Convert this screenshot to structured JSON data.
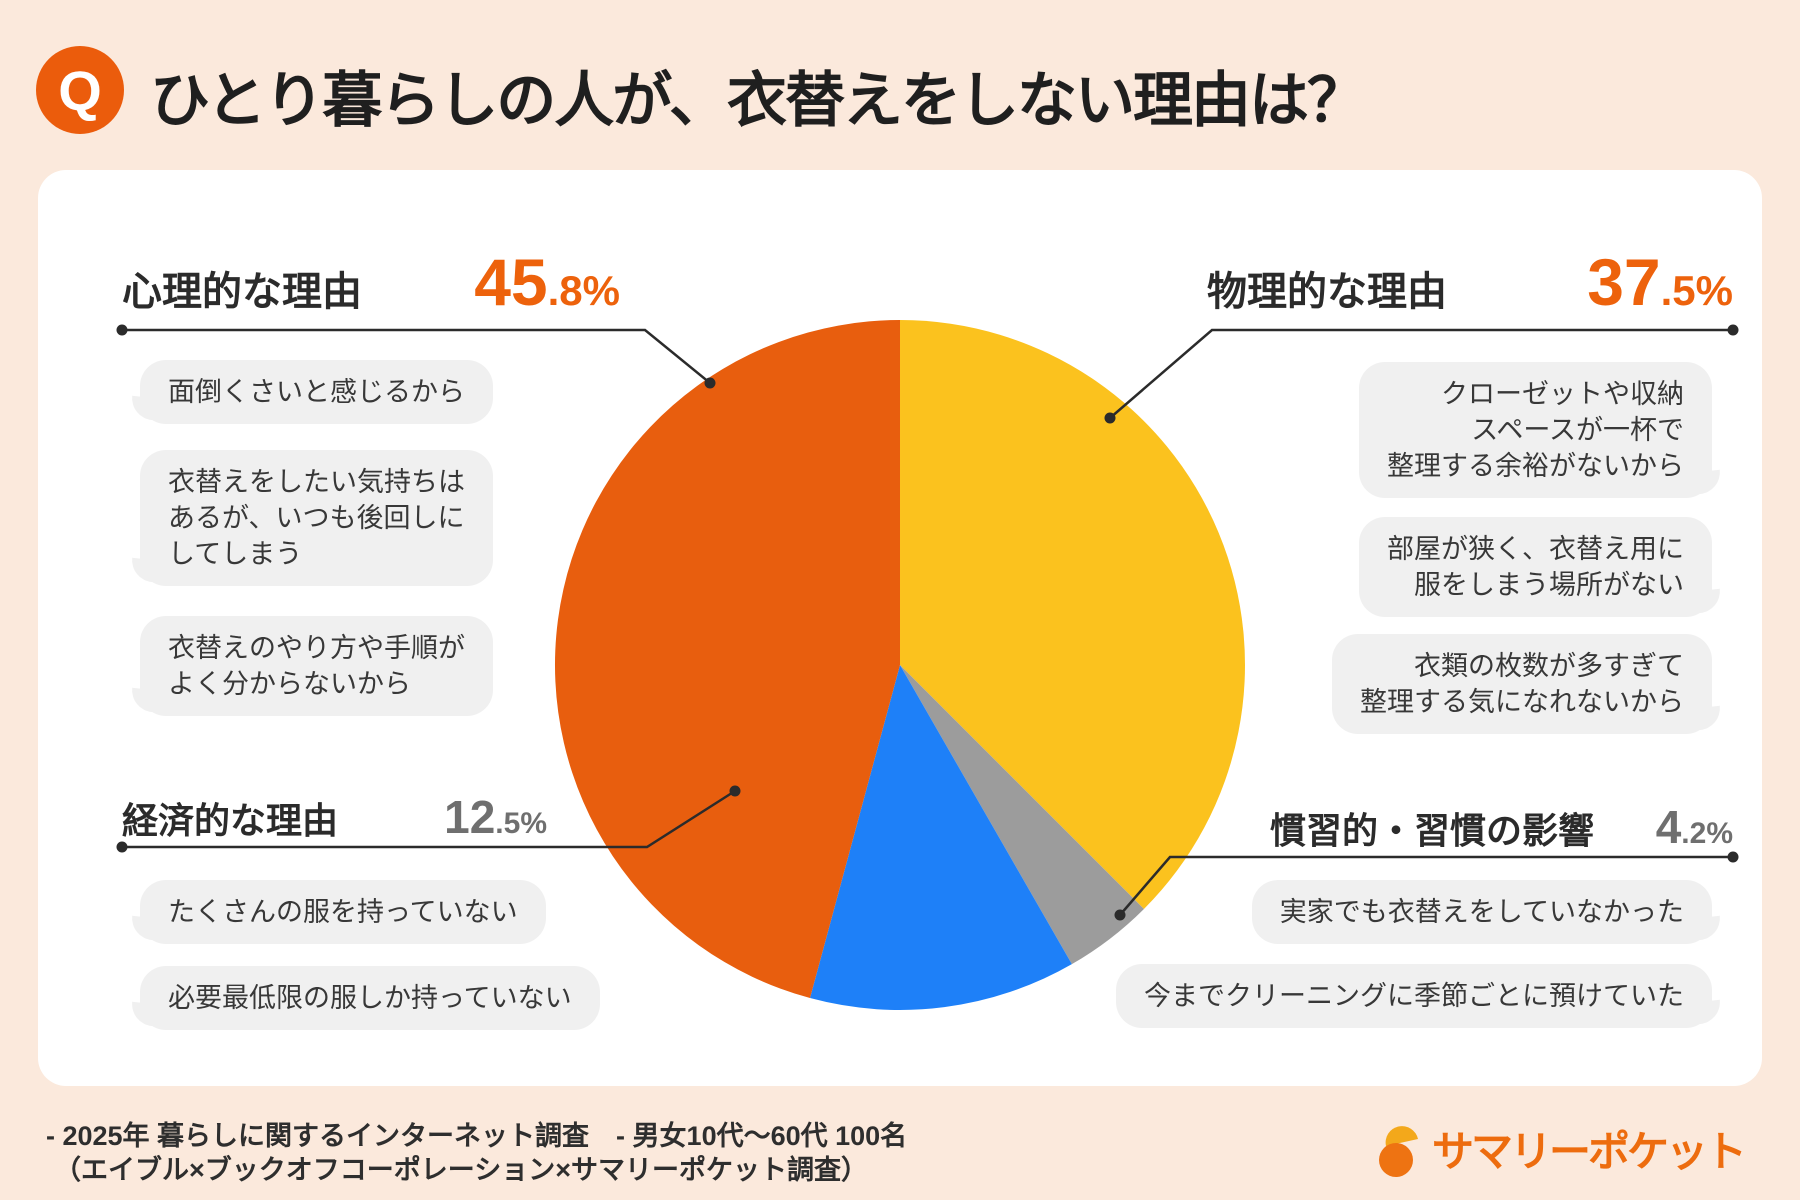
{
  "header": {
    "q_badge": "Q",
    "title": "ひとり暮らしの人が、衣替えをしない理由は？"
  },
  "chart_data": {
    "type": "pie",
    "title": "ひとり暮らしの人が、衣替えをしない理由は？",
    "start_angle_deg": 0,
    "direction": "clockwise",
    "slices": [
      {
        "key": "physical",
        "label": "物理的な理由",
        "value": 37.5,
        "color": "#FBC21E"
      },
      {
        "key": "habitual",
        "label": "慣習的・習慣の影響",
        "value": 4.2,
        "color": "#9C9C9C"
      },
      {
        "key": "economic",
        "label": "経済的な理由",
        "value": 12.5,
        "color": "#1E80F8"
      },
      {
        "key": "psychological",
        "label": "心理的な理由",
        "value": 45.8,
        "color": "#E85E0E"
      }
    ]
  },
  "category_labels": {
    "psychological": {
      "name": "心理的な理由",
      "percent_main": "45",
      "percent_frac": ".8%"
    },
    "physical": {
      "name": "物理的な理由",
      "percent_main": "37",
      "percent_frac": ".5%"
    },
    "economic": {
      "name": "経済的な理由",
      "percent_main": "12",
      "percent_frac": ".5%"
    },
    "habitual": {
      "name": "慣習的・習慣の影響",
      "percent_main": "4",
      "percent_frac": ".2%"
    }
  },
  "bubbles": {
    "psychological": [
      "面倒くさいと感じるから",
      "衣替えをしたい気持ちは\nあるが、いつも後回しに\nしてしまう",
      "衣替えのやり方や手順が\nよく分からないから"
    ],
    "physical": [
      "クローゼットや収納\nスペースが一杯で\n整理する余裕がないから",
      "部屋が狭く、衣替え用に\n服をしまう場所がない",
      "衣類の枚数が多すぎて\n整理する気になれないから"
    ],
    "economic": [
      "たくさんの服を持っていない",
      "必要最低限の服しか持っていない"
    ],
    "habitual": [
      "実家でも衣替えをしていなかった",
      "今までクリーニングに季節ごとに預けていた"
    ]
  },
  "footer": {
    "line1": "- 2025年 暮らしに関するインターネット調査　- 男女10代～60代 100名",
    "line2": "（エイブル×ブックオフコーポレーション×サマリーポケット調査）",
    "logo_text": "サマリーポケット"
  },
  "colors": {
    "accent_orange": "#ED620C",
    "percent_gray": "#6F6F6F",
    "background": "#FBE9DC",
    "bubble_gray": "#F0F0F0"
  }
}
